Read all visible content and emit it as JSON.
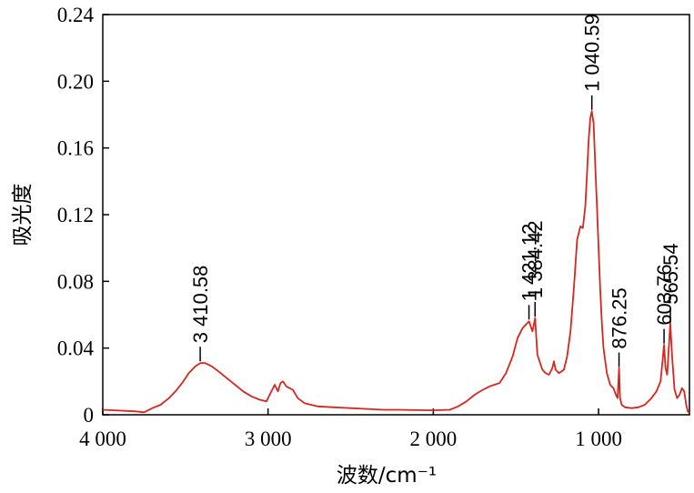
{
  "chart_data": {
    "type": "line",
    "title": "",
    "xlabel": "波数/cm⁻¹",
    "ylabel": "吸光度",
    "xlim": [
      4000,
      450
    ],
    "ylim": [
      0,
      0.24
    ],
    "x_reversed": true,
    "grid": false,
    "x_ticks": [
      {
        "value": 4000,
        "label": "4 000"
      },
      {
        "value": 3000,
        "label": "3 000"
      },
      {
        "value": 2000,
        "label": "2 000"
      },
      {
        "value": 1000,
        "label": "1 000"
      }
    ],
    "y_ticks": [
      {
        "value": 0,
        "label": "0"
      },
      {
        "value": 0.04,
        "label": "0.04"
      },
      {
        "value": 0.08,
        "label": "0.08"
      },
      {
        "value": 0.12,
        "label": "0.12"
      },
      {
        "value": 0.16,
        "label": "0.16"
      },
      {
        "value": 0.2,
        "label": "0.20"
      },
      {
        "value": 0.24,
        "label": "0.24"
      }
    ],
    "series": [
      {
        "color": "#d7261e",
        "points": [
          [
            4000,
            0.003
          ],
          [
            3900,
            0.0025
          ],
          [
            3800,
            0.002
          ],
          [
            3750,
            0.0015
          ],
          [
            3700,
            0.004
          ],
          [
            3650,
            0.006
          ],
          [
            3600,
            0.01
          ],
          [
            3560,
            0.014
          ],
          [
            3520,
            0.019
          ],
          [
            3480,
            0.025
          ],
          [
            3440,
            0.029
          ],
          [
            3410,
            0.031
          ],
          [
            3380,
            0.031
          ],
          [
            3340,
            0.029
          ],
          [
            3300,
            0.026
          ],
          [
            3250,
            0.022
          ],
          [
            3200,
            0.018
          ],
          [
            3150,
            0.014
          ],
          [
            3100,
            0.011
          ],
          [
            3050,
            0.009
          ],
          [
            3010,
            0.008
          ],
          [
            2990,
            0.012
          ],
          [
            2960,
            0.018
          ],
          [
            2940,
            0.014
          ],
          [
            2925,
            0.019
          ],
          [
            2910,
            0.02
          ],
          [
            2890,
            0.017
          ],
          [
            2870,
            0.016
          ],
          [
            2850,
            0.015
          ],
          [
            2820,
            0.01
          ],
          [
            2780,
            0.007
          ],
          [
            2700,
            0.005
          ],
          [
            2600,
            0.0045
          ],
          [
            2500,
            0.004
          ],
          [
            2400,
            0.0035
          ],
          [
            2300,
            0.003
          ],
          [
            2200,
            0.003
          ],
          [
            2100,
            0.0028
          ],
          [
            2000,
            0.0027
          ],
          [
            1900,
            0.003
          ],
          [
            1850,
            0.005
          ],
          [
            1800,
            0.008
          ],
          [
            1750,
            0.012
          ],
          [
            1700,
            0.015
          ],
          [
            1660,
            0.017
          ],
          [
            1630,
            0.018
          ],
          [
            1600,
            0.019
          ],
          [
            1560,
            0.025
          ],
          [
            1520,
            0.035
          ],
          [
            1490,
            0.046
          ],
          [
            1460,
            0.052
          ],
          [
            1421,
            0.056
          ],
          [
            1400,
            0.05
          ],
          [
            1384,
            0.058
          ],
          [
            1370,
            0.036
          ],
          [
            1340,
            0.027
          ],
          [
            1320,
            0.025
          ],
          [
            1300,
            0.024
          ],
          [
            1280,
            0.028
          ],
          [
            1270,
            0.032
          ],
          [
            1260,
            0.027
          ],
          [
            1240,
            0.025
          ],
          [
            1210,
            0.027
          ],
          [
            1190,
            0.035
          ],
          [
            1170,
            0.05
          ],
          [
            1150,
            0.075
          ],
          [
            1130,
            0.105
          ],
          [
            1110,
            0.113
          ],
          [
            1095,
            0.112
          ],
          [
            1080,
            0.125
          ],
          [
            1070,
            0.145
          ],
          [
            1060,
            0.165
          ],
          [
            1050,
            0.178
          ],
          [
            1041,
            0.182
          ],
          [
            1030,
            0.175
          ],
          [
            1020,
            0.15
          ],
          [
            1010,
            0.125
          ],
          [
            1000,
            0.1
          ],
          [
            990,
            0.075
          ],
          [
            980,
            0.055
          ],
          [
            970,
            0.04
          ],
          [
            950,
            0.025
          ],
          [
            930,
            0.018
          ],
          [
            910,
            0.016
          ],
          [
            895,
            0.012
          ],
          [
            885,
            0.01
          ],
          [
            876,
            0.028
          ],
          [
            870,
            0.01
          ],
          [
            860,
            0.006
          ],
          [
            840,
            0.0045
          ],
          [
            800,
            0.004
          ],
          [
            760,
            0.0045
          ],
          [
            720,
            0.006
          ],
          [
            680,
            0.01
          ],
          [
            650,
            0.014
          ],
          [
            625,
            0.02
          ],
          [
            610,
            0.035
          ],
          [
            604,
            0.042
          ],
          [
            595,
            0.028
          ],
          [
            585,
            0.024
          ],
          [
            575,
            0.04
          ],
          [
            566,
            0.055
          ],
          [
            555,
            0.035
          ],
          [
            540,
            0.015
          ],
          [
            525,
            0.01
          ],
          [
            510,
            0.012
          ],
          [
            495,
            0.016
          ],
          [
            482,
            0.014
          ],
          [
            470,
            0.006
          ],
          [
            460,
            0.002
          ],
          [
            450,
            0.001
          ]
        ]
      }
    ],
    "annotations": [
      {
        "x": 3410.58,
        "label": "3 410.58"
      },
      {
        "x": 1421.12,
        "label": "1 421.12"
      },
      {
        "x": 1384.42,
        "label": "1 384.42"
      },
      {
        "x": 1040.59,
        "label": "1 040.59"
      },
      {
        "x": 876.25,
        "label": "876.25"
      },
      {
        "x": 603.76,
        "label": "603.76"
      },
      {
        "x": 565.54,
        "label": "565.54"
      }
    ]
  }
}
